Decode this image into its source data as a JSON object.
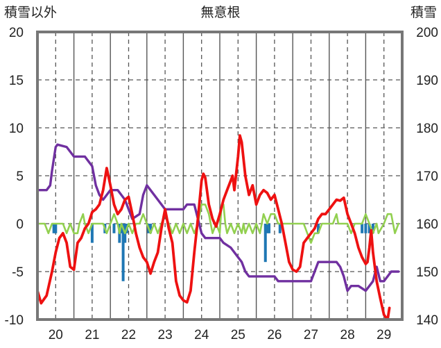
{
  "chart_data": {
    "type": "line",
    "title": "無意根",
    "ylabel_left": "積雪以外",
    "ylabel_right": "積雪",
    "ylim_left": [
      -10,
      20
    ],
    "ylim_right": [
      140,
      200
    ],
    "yticks_left": [
      "20",
      "15",
      "10",
      "5",
      "0",
      "-5",
      "-10"
    ],
    "yticks_right": [
      "200",
      "190",
      "180",
      "170",
      "160",
      "150",
      "140"
    ],
    "x_range": [
      19.5,
      29.5
    ],
    "categories": [
      "20",
      "21",
      "22",
      "23",
      "24",
      "25",
      "26",
      "27",
      "28",
      "29"
    ],
    "colors": {
      "temperature": "#ee1111",
      "snow_depth": "#7030a0",
      "precipitation": "#1f77b4",
      "wind": "#92d050",
      "grid": "#555555",
      "frame": "#777777"
    },
    "series": [
      {
        "key": "temperature",
        "axis": "left",
        "values": [
          [
            19.5,
            -7
          ],
          [
            19.6,
            -8.3
          ],
          [
            19.75,
            -7.5
          ],
          [
            19.9,
            -5
          ],
          [
            20.0,
            -3
          ],
          [
            20.1,
            -1.5
          ],
          [
            20.2,
            -1
          ],
          [
            20.3,
            -2
          ],
          [
            20.4,
            -4.5
          ],
          [
            20.5,
            -4.8
          ],
          [
            20.6,
            -2
          ],
          [
            20.7,
            -1.5
          ],
          [
            20.8,
            -0.5
          ],
          [
            20.9,
            0
          ],
          [
            21.0,
            1.2
          ],
          [
            21.1,
            1.5
          ],
          [
            21.2,
            2
          ],
          [
            21.3,
            3.5
          ],
          [
            21.4,
            5.8
          ],
          [
            21.5,
            4
          ],
          [
            21.6,
            2
          ],
          [
            21.7,
            1
          ],
          [
            21.8,
            1.5
          ],
          [
            21.9,
            2.5
          ],
          [
            22.0,
            2.8
          ],
          [
            22.1,
            1
          ],
          [
            22.2,
            -1
          ],
          [
            22.3,
            -2.5
          ],
          [
            22.4,
            -3.5
          ],
          [
            22.5,
            -4
          ],
          [
            22.6,
            -5.2
          ],
          [
            22.7,
            -4
          ],
          [
            22.8,
            -3
          ],
          [
            22.9,
            -0.5
          ],
          [
            23.0,
            1.5
          ],
          [
            23.1,
            -0.5
          ],
          [
            23.2,
            -2
          ],
          [
            23.3,
            -6
          ],
          [
            23.4,
            -7.5
          ],
          [
            23.5,
            -8
          ],
          [
            23.6,
            -8.2
          ],
          [
            23.7,
            -7
          ],
          [
            23.8,
            -3
          ],
          [
            23.9,
            0.5
          ],
          [
            24.0,
            4.5
          ],
          [
            24.05,
            5.2
          ],
          [
            24.1,
            4.8
          ],
          [
            24.2,
            2
          ],
          [
            24.3,
            0.5
          ],
          [
            24.4,
            -0.3
          ],
          [
            24.5,
            1
          ],
          [
            24.6,
            2.5
          ],
          [
            24.7,
            3.5
          ],
          [
            24.8,
            4.5
          ],
          [
            24.85,
            5
          ],
          [
            24.9,
            3.5
          ],
          [
            25.0,
            7
          ],
          [
            25.05,
            9.2
          ],
          [
            25.1,
            8.5
          ],
          [
            25.2,
            5
          ],
          [
            25.3,
            3
          ],
          [
            25.4,
            4
          ],
          [
            25.5,
            2
          ],
          [
            25.6,
            3
          ],
          [
            25.7,
            3.5
          ],
          [
            25.8,
            3.2
          ],
          [
            25.9,
            2.5
          ],
          [
            26.0,
            3
          ],
          [
            26.1,
            1.5
          ],
          [
            26.2,
            0
          ],
          [
            26.3,
            -2
          ],
          [
            26.4,
            -4
          ],
          [
            26.5,
            -4.8
          ],
          [
            26.6,
            -5
          ],
          [
            26.7,
            -4.5
          ],
          [
            26.8,
            -2
          ],
          [
            26.9,
            -1.5
          ],
          [
            27.0,
            -1
          ],
          [
            27.1,
            -0.5
          ],
          [
            27.2,
            0.5
          ],
          [
            27.3,
            1
          ],
          [
            27.4,
            1
          ],
          [
            27.5,
            1.5
          ],
          [
            27.6,
            2
          ],
          [
            27.7,
            2.5
          ],
          [
            27.8,
            2.4
          ],
          [
            27.9,
            2.7
          ],
          [
            28.0,
            1
          ],
          [
            28.1,
            0
          ],
          [
            28.2,
            -1
          ],
          [
            28.3,
            -2.5
          ],
          [
            28.4,
            -3.5
          ],
          [
            28.5,
            -4.2
          ],
          [
            28.55,
            -4
          ],
          [
            28.6,
            -2.5
          ],
          [
            28.65,
            -0.7
          ],
          [
            28.7,
            -3
          ],
          [
            28.8,
            -6
          ],
          [
            28.9,
            -7.8
          ],
          [
            29.0,
            -9.5
          ],
          [
            29.1,
            -10
          ],
          [
            29.15,
            -8.8
          ]
        ]
      },
      {
        "key": "snow_depth",
        "axis": "right",
        "values": [
          [
            19.5,
            167
          ],
          [
            19.75,
            167
          ],
          [
            19.85,
            168
          ],
          [
            19.9,
            171
          ],
          [
            20.0,
            176
          ],
          [
            20.05,
            176.5
          ],
          [
            20.3,
            176
          ],
          [
            20.5,
            174
          ],
          [
            20.8,
            174
          ],
          [
            21.0,
            172
          ],
          [
            21.1,
            168
          ],
          [
            21.2,
            166
          ],
          [
            21.3,
            165
          ],
          [
            21.4,
            166
          ],
          [
            21.5,
            167
          ],
          [
            21.7,
            167
          ],
          [
            21.8,
            166
          ],
          [
            21.9,
            165
          ],
          [
            22.0,
            163
          ],
          [
            22.1,
            161
          ],
          [
            22.3,
            162
          ],
          [
            22.4,
            166
          ],
          [
            22.5,
            168
          ],
          [
            22.6,
            167
          ],
          [
            22.8,
            165
          ],
          [
            23.0,
            163
          ],
          [
            23.1,
            163
          ],
          [
            23.5,
            163
          ],
          [
            23.6,
            164
          ],
          [
            23.8,
            164
          ],
          [
            24.0,
            158
          ],
          [
            24.1,
            157
          ],
          [
            24.5,
            157
          ],
          [
            24.6,
            156
          ],
          [
            24.8,
            155
          ],
          [
            25.0,
            153
          ],
          [
            25.1,
            152
          ],
          [
            25.2,
            150
          ],
          [
            25.3,
            149
          ],
          [
            25.5,
            149
          ],
          [
            26.0,
            149
          ],
          [
            26.1,
            148
          ],
          [
            26.5,
            148
          ],
          [
            27.0,
            148
          ],
          [
            27.1,
            150
          ],
          [
            27.2,
            152
          ],
          [
            27.5,
            152
          ],
          [
            27.7,
            152
          ],
          [
            27.8,
            151
          ],
          [
            27.9,
            149
          ],
          [
            28.0,
            146
          ],
          [
            28.1,
            147
          ],
          [
            28.3,
            147
          ],
          [
            28.5,
            146
          ],
          [
            28.6,
            147
          ],
          [
            28.7,
            148
          ],
          [
            28.8,
            151
          ],
          [
            28.9,
            148
          ],
          [
            29.0,
            148
          ],
          [
            29.1,
            149
          ],
          [
            29.2,
            150
          ],
          [
            29.3,
            150
          ],
          [
            29.4,
            150
          ]
        ]
      },
      {
        "key": "wind",
        "axis": "left",
        "values": [
          [
            19.5,
            0
          ],
          [
            19.7,
            0
          ],
          [
            19.8,
            -1
          ],
          [
            19.9,
            0
          ],
          [
            20.2,
            0
          ],
          [
            20.3,
            -1
          ],
          [
            20.4,
            0
          ],
          [
            20.5,
            -1
          ],
          [
            20.6,
            -1
          ],
          [
            20.65,
            0
          ],
          [
            20.75,
            1
          ],
          [
            20.8,
            0
          ],
          [
            20.9,
            -1
          ],
          [
            21.0,
            0
          ],
          [
            21.3,
            0
          ],
          [
            21.4,
            -1
          ],
          [
            21.5,
            0
          ],
          [
            21.6,
            1
          ],
          [
            21.7,
            0
          ],
          [
            21.75,
            -1
          ],
          [
            21.8,
            0
          ],
          [
            21.9,
            -1
          ],
          [
            22.0,
            0
          ],
          [
            22.1,
            -1
          ],
          [
            22.2,
            0
          ],
          [
            22.3,
            0
          ],
          [
            22.4,
            1
          ],
          [
            22.5,
            0
          ],
          [
            22.6,
            -1
          ],
          [
            22.7,
            0
          ],
          [
            22.8,
            -1
          ],
          [
            22.9,
            0
          ],
          [
            23.0,
            1
          ],
          [
            23.1,
            0
          ],
          [
            23.2,
            -1
          ],
          [
            23.3,
            0
          ],
          [
            23.4,
            -1
          ],
          [
            23.5,
            0
          ],
          [
            23.6,
            -1
          ],
          [
            23.7,
            0
          ],
          [
            23.8,
            -1
          ],
          [
            23.9,
            0
          ],
          [
            24.0,
            2
          ],
          [
            24.1,
            2
          ],
          [
            24.2,
            1
          ],
          [
            24.3,
            -1
          ],
          [
            24.4,
            0
          ],
          [
            24.5,
            -1
          ],
          [
            24.55,
            2
          ],
          [
            24.6,
            2
          ],
          [
            24.65,
            0
          ],
          [
            24.7,
            -1
          ],
          [
            24.8,
            0
          ],
          [
            24.9,
            -1
          ],
          [
            25.0,
            0
          ],
          [
            25.1,
            -1
          ],
          [
            25.15,
            0
          ],
          [
            25.2,
            -1
          ],
          [
            25.3,
            0
          ],
          [
            25.4,
            -1
          ],
          [
            25.5,
            0
          ],
          [
            25.6,
            -1
          ],
          [
            25.7,
            1
          ],
          [
            25.8,
            0
          ],
          [
            25.9,
            1
          ],
          [
            26.0,
            1
          ],
          [
            26.1,
            0
          ],
          [
            26.3,
            0
          ],
          [
            26.8,
            0
          ],
          [
            26.9,
            -1
          ],
          [
            27.0,
            -2
          ],
          [
            27.1,
            -1
          ],
          [
            27.2,
            -1
          ],
          [
            27.3,
            0
          ],
          [
            27.6,
            0
          ],
          [
            27.7,
            1
          ],
          [
            27.75,
            0
          ],
          [
            28.0,
            0
          ],
          [
            28.1,
            -1
          ],
          [
            28.2,
            0
          ],
          [
            28.4,
            0
          ],
          [
            28.5,
            1
          ],
          [
            28.6,
            0
          ],
          [
            28.7,
            -1
          ],
          [
            28.8,
            0
          ],
          [
            28.85,
            -1
          ],
          [
            29.0,
            0
          ],
          [
            29.1,
            1
          ],
          [
            29.2,
            1
          ],
          [
            29.3,
            -1
          ],
          [
            29.4,
            0
          ]
        ]
      },
      {
        "key": "precipitation",
        "axis": "left",
        "type": "bar",
        "values": [
          [
            19.95,
            -1
          ],
          [
            20.0,
            -1
          ],
          [
            21.0,
            -2
          ],
          [
            21.35,
            -1
          ],
          [
            21.6,
            -1
          ],
          [
            21.75,
            -2
          ],
          [
            21.8,
            -1
          ],
          [
            21.85,
            -6
          ],
          [
            21.9,
            -2
          ],
          [
            21.95,
            -1
          ],
          [
            22.55,
            -1
          ],
          [
            22.6,
            -1
          ],
          [
            25.75,
            -4
          ],
          [
            25.8,
            -1
          ],
          [
            25.85,
            -1
          ],
          [
            26.15,
            -1
          ],
          [
            27.2,
            -1
          ],
          [
            28.4,
            -1
          ],
          [
            28.5,
            -1
          ],
          [
            28.6,
            -1
          ],
          [
            28.7,
            -1
          ]
        ]
      }
    ]
  }
}
